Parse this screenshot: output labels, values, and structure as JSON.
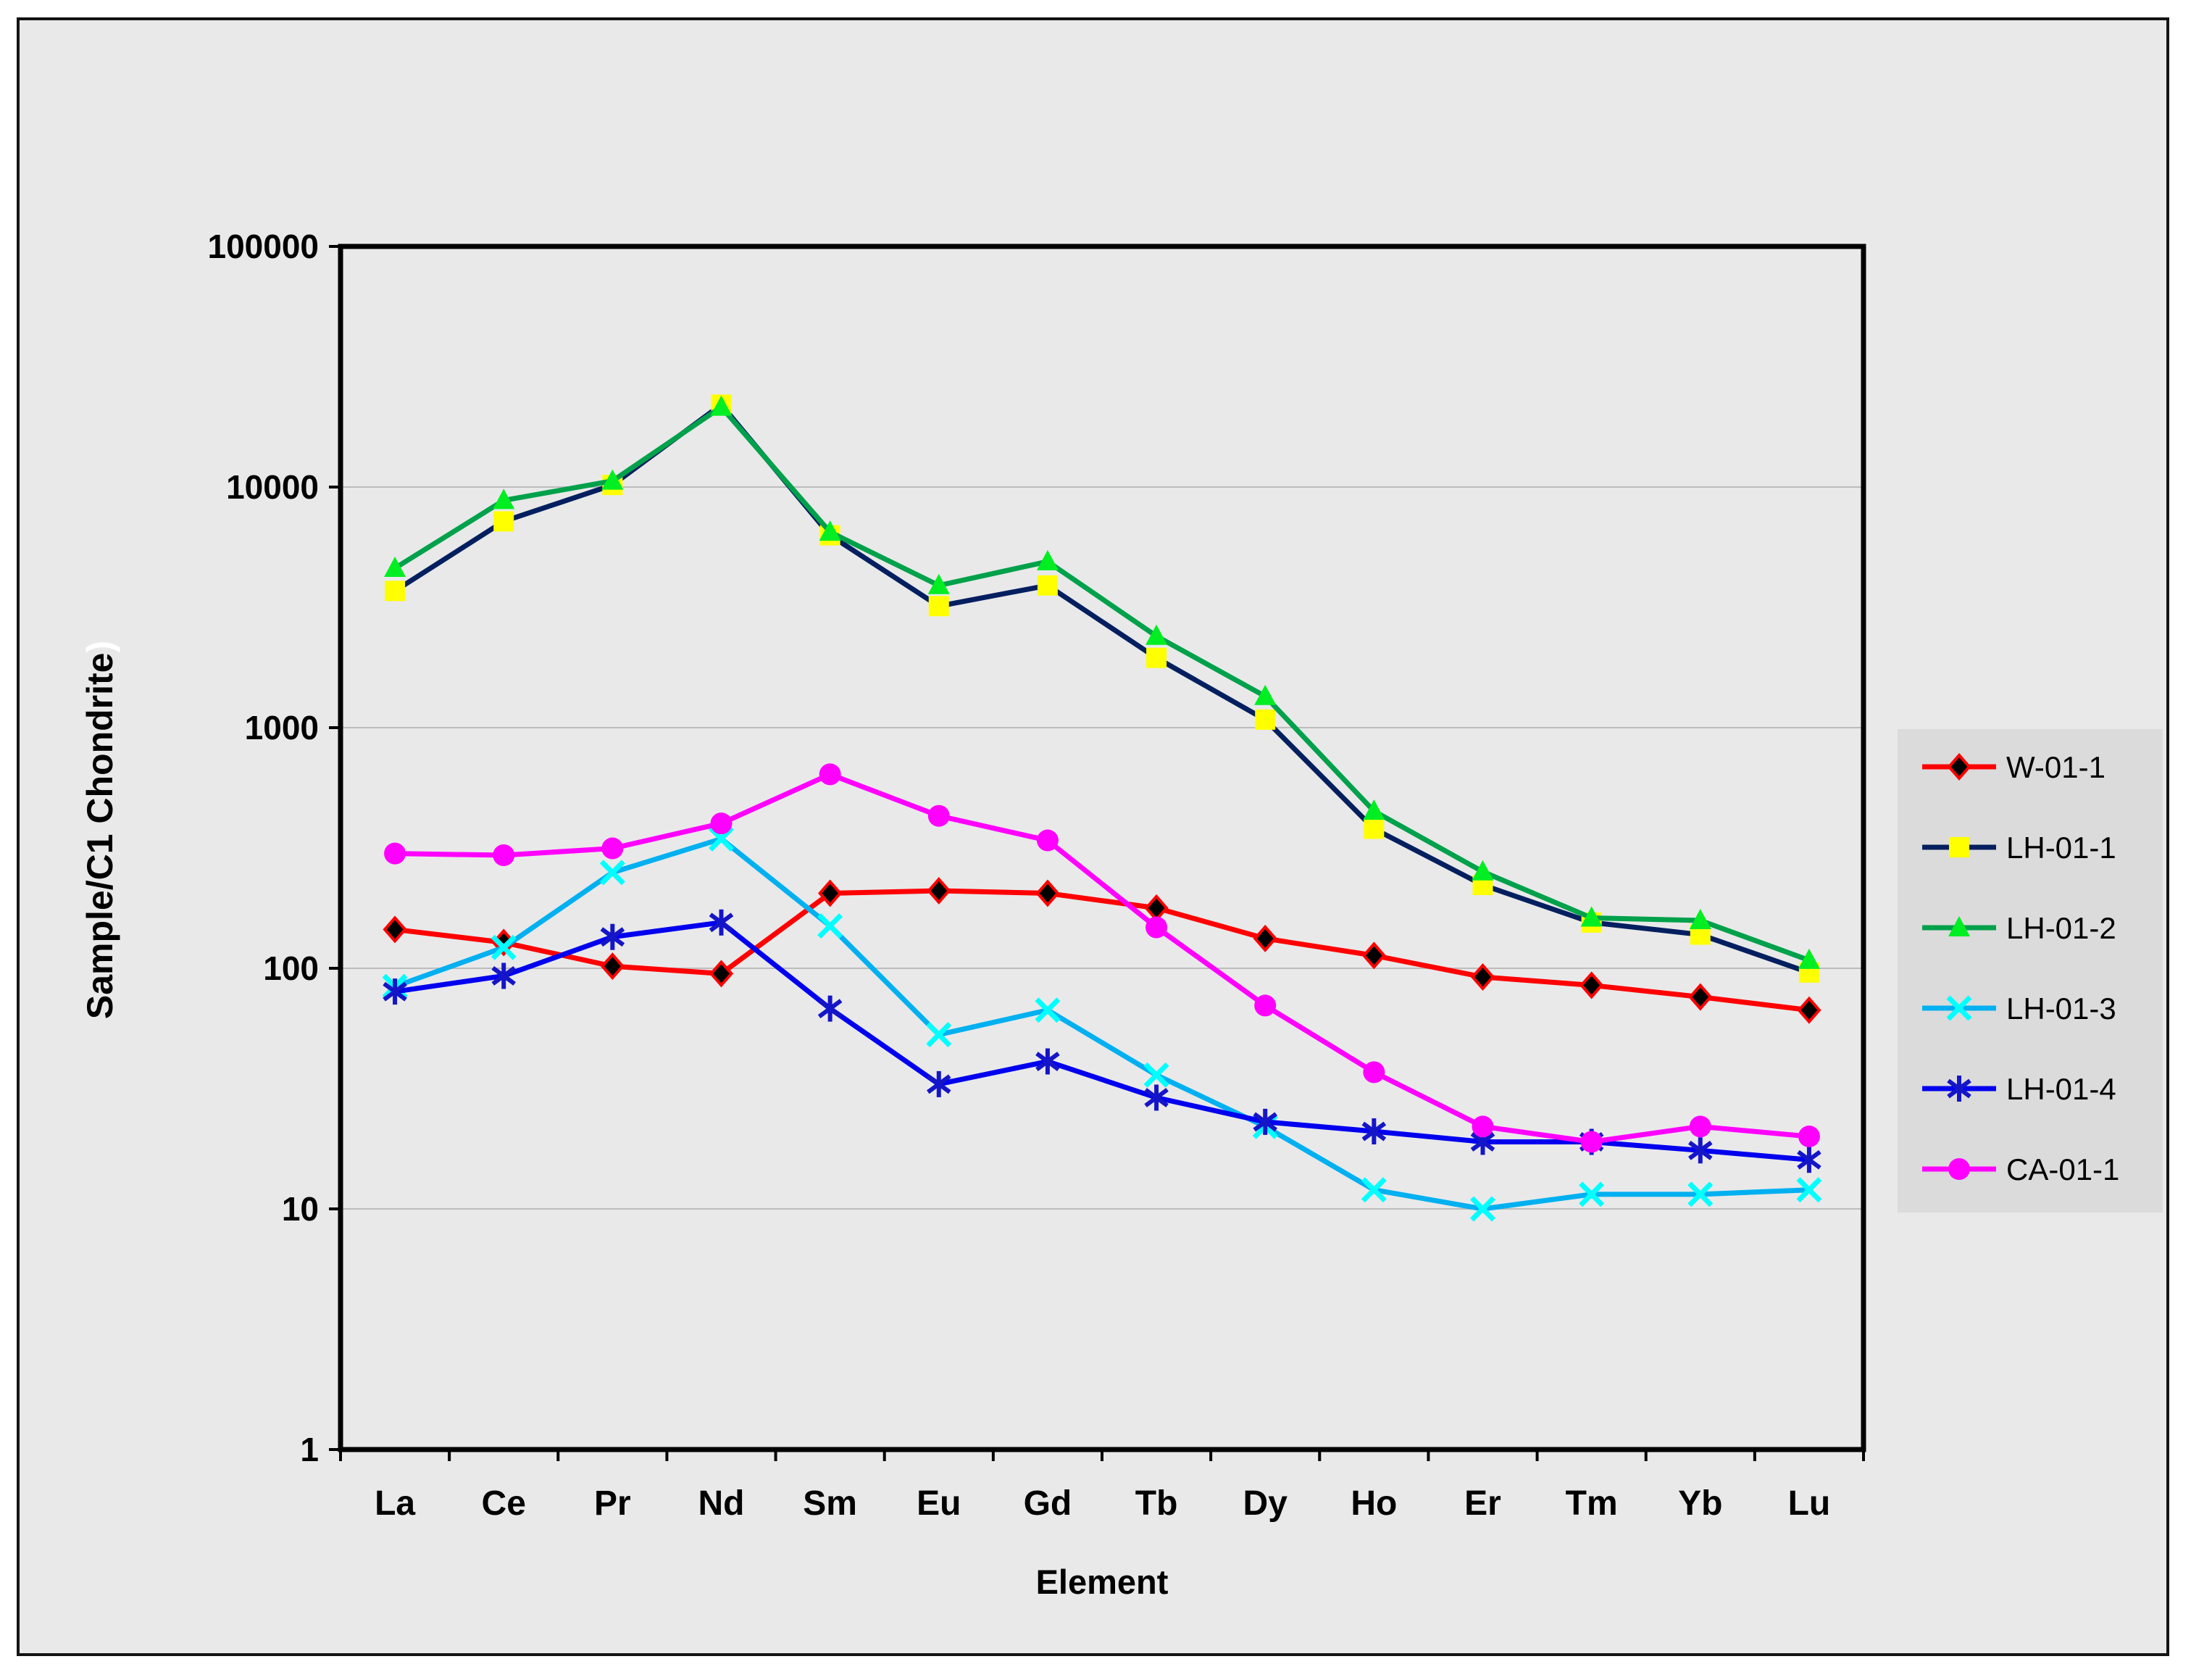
{
  "figure": {
    "canvas_fill": "#e9e9e9",
    "frame_color": "#141414",
    "gridline_color": "#bcbcbc",
    "legend_fill": "#dbdbdb"
  },
  "chart_data": {
    "type": "line",
    "y_scale": "log",
    "ylim": [
      1,
      100000
    ],
    "y_ticks": [
      100000,
      10000,
      1000,
      100,
      10,
      1
    ],
    "grid": true,
    "legend_position": "right",
    "xlabel": "Element",
    "ylabel": "Sample/C1 Chondrite",
    "ylabel_suffix": ")",
    "categories": [
      "La",
      "Ce",
      "Pr",
      "Nd",
      "Sm",
      "Eu",
      "Gd",
      "Tb",
      "Dy",
      "Ho",
      "Er",
      "Tm",
      "Yb",
      "Lu"
    ],
    "series": [
      {
        "name": "W-01-1",
        "line_color": "#ff0000",
        "marker": "diamond",
        "marker_color": "#000000",
        "marker_edge": "#ff0000",
        "values": [
          145,
          128,
          102,
          95,
          205,
          210,
          205,
          178,
          133,
          113,
          92,
          85,
          76,
          67
        ]
      },
      {
        "name": "LH-01-1",
        "line_color": "#041f5f",
        "marker": "square",
        "marker_color": "#ffff00",
        "marker_edge": "#ffff00",
        "values": [
          3700,
          7200,
          10200,
          22000,
          6300,
          3200,
          3900,
          1950,
          1080,
          380,
          222,
          155,
          138,
          96
        ]
      },
      {
        "name": "LH-01-2",
        "line_color": "#00a14b",
        "marker": "triangle",
        "marker_color": "#00ee22",
        "marker_edge": "#00ee22",
        "values": [
          4600,
          8800,
          10600,
          21500,
          6500,
          3900,
          4900,
          2400,
          1350,
          450,
          252,
          162,
          158,
          108
        ]
      },
      {
        "name": "LH-01-3",
        "line_color": "#00b0f0",
        "marker": "x",
        "marker_color": "#00ffff",
        "marker_edge": "#00ffff",
        "values": [
          84,
          122,
          250,
          345,
          150,
          53,
          67,
          36,
          22,
          12,
          10,
          11.5,
          11.5,
          12
        ]
      },
      {
        "name": "LH-01-4",
        "line_color": "#0000ee",
        "marker": "asterisk",
        "marker_color": "#1515c8",
        "marker_edge": "#1515c8",
        "values": [
          80,
          93,
          135,
          155,
          68,
          33,
          41,
          29,
          23,
          21,
          19,
          19,
          17.5,
          16
        ]
      },
      {
        "name": "CA-01-1",
        "line_color": "#ff00ff",
        "marker": "circle",
        "marker_color": "#ff00ff",
        "marker_edge": "#ff00ff",
        "values": [
          300,
          295,
          315,
          400,
          640,
          430,
          340,
          148,
          70,
          37,
          22,
          19,
          22,
          20
        ]
      }
    ]
  }
}
